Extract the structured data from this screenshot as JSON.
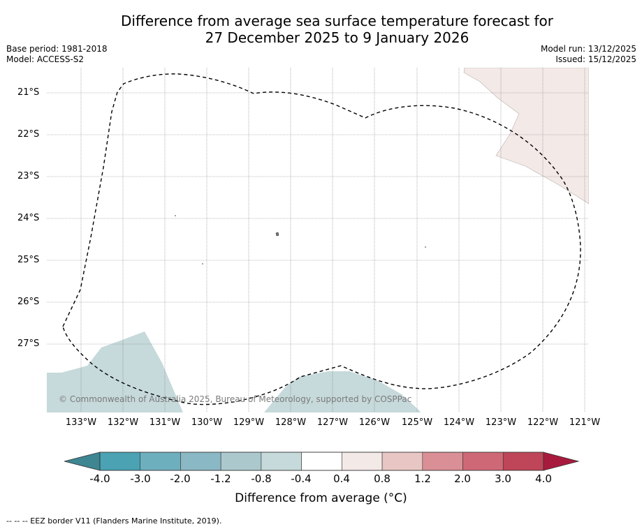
{
  "header": {
    "title_line1": "Difference from average sea surface temperature forecast for",
    "title_line2": "27 December 2025 to 9 January 2026",
    "base_period": "Base period: 1981-2018",
    "model": "Model: ACCESS-S2",
    "model_run": "Model run: 13/12/2025",
    "issued": "Issued: 15/12/2025"
  },
  "map": {
    "latitude_labels": [
      "21°S",
      "22°S",
      "23°S",
      "24°S",
      "25°S",
      "26°S",
      "27°S"
    ],
    "longitude_labels": [
      "133°W",
      "132°W",
      "131°W",
      "130°W",
      "129°W",
      "128°W",
      "127°W",
      "126°W",
      "125°W",
      "124°W",
      "123°W",
      "122°W",
      "121°W"
    ],
    "copyright": "© Commonwealth of Australia 2025, Bureau of Meteorology, supported by COSPPac",
    "colors": {
      "warm_anomaly": "#f3e9e7",
      "cool_anomaly": "#c6d9db",
      "grid": "#808080",
      "eez_border": "#000000"
    }
  },
  "legend": {
    "tick_labels": [
      "-4.0",
      "-3.0",
      "-2.0",
      "-1.2",
      "-0.8",
      "-0.4",
      "0.4",
      "0.8",
      "1.2",
      "2.0",
      "3.0",
      "4.0"
    ],
    "title": "Difference from average (°C)",
    "colors": [
      "#3d8692",
      "#4aa2b3",
      "#6eafbe",
      "#8ab8c4",
      "#abc8cd",
      "#c6d9db",
      "#ffffff",
      "#f3e9e7",
      "#e8c6c3",
      "#d98f95",
      "#cf6876",
      "#bf4558",
      "#a81a3d"
    ]
  },
  "footer": {
    "note": "--  --  -- EEZ border V11 (Flanders Marine Institute, 2019)."
  }
}
